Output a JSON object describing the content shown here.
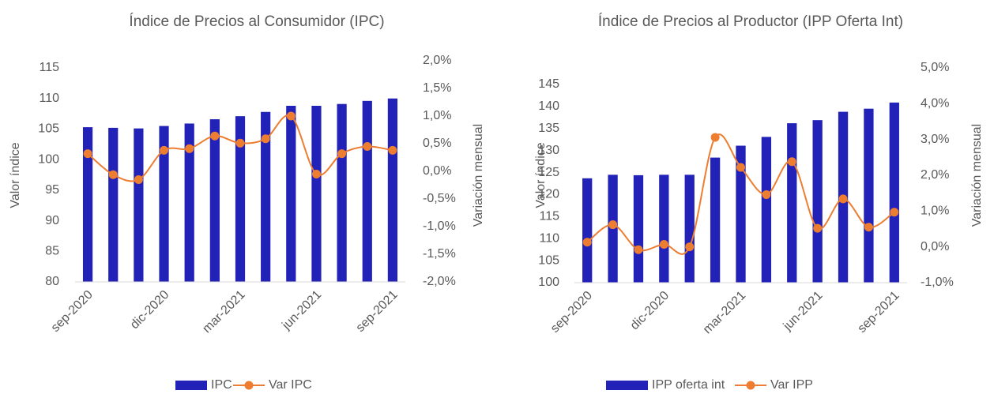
{
  "chart_data": [
    {
      "type": "bar_line",
      "title": "Índice de Precios al Consumidor (IPC)",
      "y_label": "Valor índice",
      "y2_label": "Variación mensual",
      "categories": [
        "sep-2020",
        null,
        null,
        "dic-2020",
        null,
        null,
        "mar-2021",
        null,
        null,
        "jun-2021",
        null,
        null,
        "sep-2021"
      ],
      "series": [
        {
          "name": "IPC",
          "color": "#2222b8",
          "type": "bar",
          "values": [
            105.3,
            105.2,
            105.1,
            105.5,
            105.9,
            106.6,
            107.1,
            107.8,
            108.8,
            108.8,
            109.1,
            109.6,
            110.0
          ]
        },
        {
          "name": "Var IPC",
          "color": "#ed7d31",
          "type": "line",
          "axis": "y2",
          "values": [
            0.32,
            -0.06,
            -0.15,
            0.38,
            0.41,
            0.64,
            0.51,
            0.59,
            1.0,
            -0.05,
            0.32,
            0.45,
            0.38
          ]
        }
      ],
      "ylim": [
        80,
        115
      ],
      "yticks": [
        80,
        85,
        90,
        95,
        100,
        105,
        110,
        115
      ],
      "y2lim": [
        -2.0,
        2.0
      ],
      "y2ticks": [
        {
          "value": -2.0,
          "label": "-2,0%"
        },
        {
          "value": -1.5,
          "label": "-1,5%"
        },
        {
          "value": -1.0,
          "label": "-1,0%"
        },
        {
          "value": -0.5,
          "label": "-0,5%"
        },
        {
          "value": 0.0,
          "label": "0,0%"
        },
        {
          "value": 0.5,
          "label": "0,5%"
        },
        {
          "value": 1.0,
          "label": "1,0%"
        },
        {
          "value": 1.5,
          "label": "1,5%"
        },
        {
          "value": 2.0,
          "label": "2,0%"
        }
      ],
      "grid": false,
      "legend": "bottom"
    },
    {
      "type": "bar_line",
      "title": "Índice de Precios al Productor (IPP Oferta Int)",
      "y_label": "Valor índice",
      "y2_label": "Variación mensual",
      "categories": [
        "sep-2020",
        null,
        null,
        "dic-2020",
        null,
        null,
        "mar-2021",
        null,
        null,
        "jun-2021",
        null,
        null,
        "sep-2021"
      ],
      "series": [
        {
          "name": "IPP oferta int",
          "color": "#2222b8",
          "type": "bar",
          "values": [
            123.7,
            124.5,
            124.4,
            124.5,
            124.5,
            128.4,
            131.1,
            133.1,
            136.2,
            136.9,
            138.8,
            139.5,
            140.9
          ]
        },
        {
          "name": "Var IPP",
          "color": "#ed7d31",
          "type": "line",
          "axis": "y2",
          "values": [
            0.13,
            0.62,
            -0.08,
            0.07,
            0.0,
            3.06,
            2.22,
            1.46,
            2.38,
            0.52,
            1.34,
            0.55,
            0.97
          ]
        }
      ],
      "ylim": [
        100,
        145
      ],
      "yticks": [
        100,
        105,
        110,
        115,
        120,
        125,
        130,
        135,
        140,
        145
      ],
      "y2lim": [
        -1.0,
        5.0
      ],
      "y2ticks": [
        {
          "value": -1.0,
          "label": "-1,0%"
        },
        {
          "value": 0.0,
          "label": "0,0%"
        },
        {
          "value": 1.0,
          "label": "1,0%"
        },
        {
          "value": 2.0,
          "label": "2,0%"
        },
        {
          "value": 3.0,
          "label": "3,0%"
        },
        {
          "value": 4.0,
          "label": "4,0%"
        },
        {
          "value": 5.0,
          "label": "5,0%"
        }
      ],
      "grid": false,
      "legend": "bottom"
    }
  ]
}
